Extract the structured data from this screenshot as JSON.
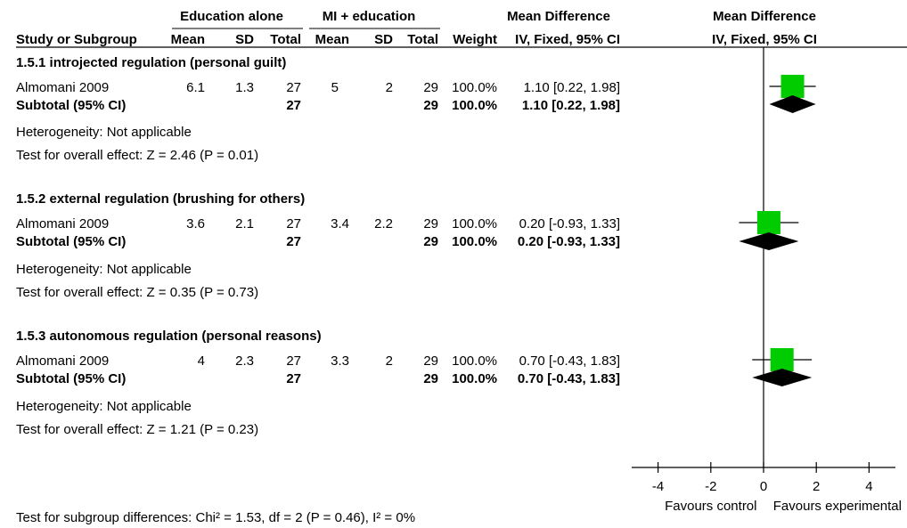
{
  "header": {
    "group1_name": "Education alone",
    "group2_name": "MI + education",
    "effect_label": "Mean Difference",
    "effect_method": "IV, Fixed, 95% CI",
    "plot_title": "Mean Difference",
    "plot_method": "IV, Fixed, 95% CI",
    "columns": [
      "Study or Subgroup",
      "Mean",
      "SD",
      "Total",
      "Mean",
      "SD",
      "Total",
      "Weight",
      "IV, Fixed, 95% CI"
    ]
  },
  "subgroups": [
    {
      "title": "1.5.1 introjected regulation (personal guilt)",
      "study": {
        "name": "Almomani 2009",
        "mean1": "6.1",
        "sd1": "1.3",
        "n1": "27",
        "mean2": "5",
        "sd2": "2",
        "n2": "29",
        "weight": "100.0%",
        "ci_text": "1.10 [0.22, 1.98]"
      },
      "subtotal": {
        "label": "Subtotal (95% CI)",
        "n1": "27",
        "n2": "29",
        "weight": "100.0%",
        "ci_text": "1.10 [0.22, 1.98]"
      },
      "heterogeneity": "Heterogeneity: Not applicable",
      "overall_effect": "Test for overall effect: Z = 2.46 (P = 0.01)"
    },
    {
      "title": "1.5.2 external regulation (brushing for others)",
      "study": {
        "name": "Almomani 2009",
        "mean1": "3.6",
        "sd1": "2.1",
        "n1": "27",
        "mean2": "3.4",
        "sd2": "2.2",
        "n2": "29",
        "weight": "100.0%",
        "ci_text": "0.20 [-0.93, 1.33]"
      },
      "subtotal": {
        "label": "Subtotal (95% CI)",
        "n1": "27",
        "n2": "29",
        "weight": "100.0%",
        "ci_text": "0.20 [-0.93, 1.33]"
      },
      "heterogeneity": "Heterogeneity: Not applicable",
      "overall_effect": "Test for overall effect: Z = 0.35 (P = 0.73)"
    },
    {
      "title": "1.5.3 autonomous regulation (personal reasons)",
      "study": {
        "name": "Almomani 2009",
        "mean1": "4",
        "sd1": "2.3",
        "n1": "27",
        "mean2": "3.3",
        "sd2": "2",
        "n2": "29",
        "weight": "100.0%",
        "ci_text": "0.70 [-0.43, 1.83]"
      },
      "subtotal": {
        "label": "Subtotal (95% CI)",
        "n1": "27",
        "n2": "29",
        "weight": "100.0%",
        "ci_text": "0.70 [-0.43, 1.83]"
      },
      "heterogeneity": "Heterogeneity: Not applicable",
      "overall_effect": "Test for overall effect: Z = 1.21 (P = 0.23)"
    }
  ],
  "footer": {
    "subgroup_test": "Test for subgroup differences: Chi² = 1.53, df = 2 (P = 0.46), I² = 0%"
  },
  "chart_data": {
    "type": "forest",
    "xlim": [
      -5,
      5
    ],
    "ticks": [
      -4,
      -2,
      0,
      2,
      4
    ],
    "favours_left": "Favours control",
    "favours_right": "Favours experimental",
    "square_color": "#00cc00",
    "diamond_color": "#000000",
    "studies": [
      {
        "est": 1.1,
        "lo": 0.22,
        "hi": 1.98
      },
      {
        "est": 0.2,
        "lo": -0.93,
        "hi": 1.33
      },
      {
        "est": 0.7,
        "lo": -0.43,
        "hi": 1.83
      }
    ],
    "subtotals": [
      {
        "est": 1.1,
        "lo": 0.22,
        "hi": 1.98
      },
      {
        "est": 0.2,
        "lo": -0.93,
        "hi": 1.33
      },
      {
        "est": 0.7,
        "lo": -0.43,
        "hi": 1.83
      }
    ]
  }
}
